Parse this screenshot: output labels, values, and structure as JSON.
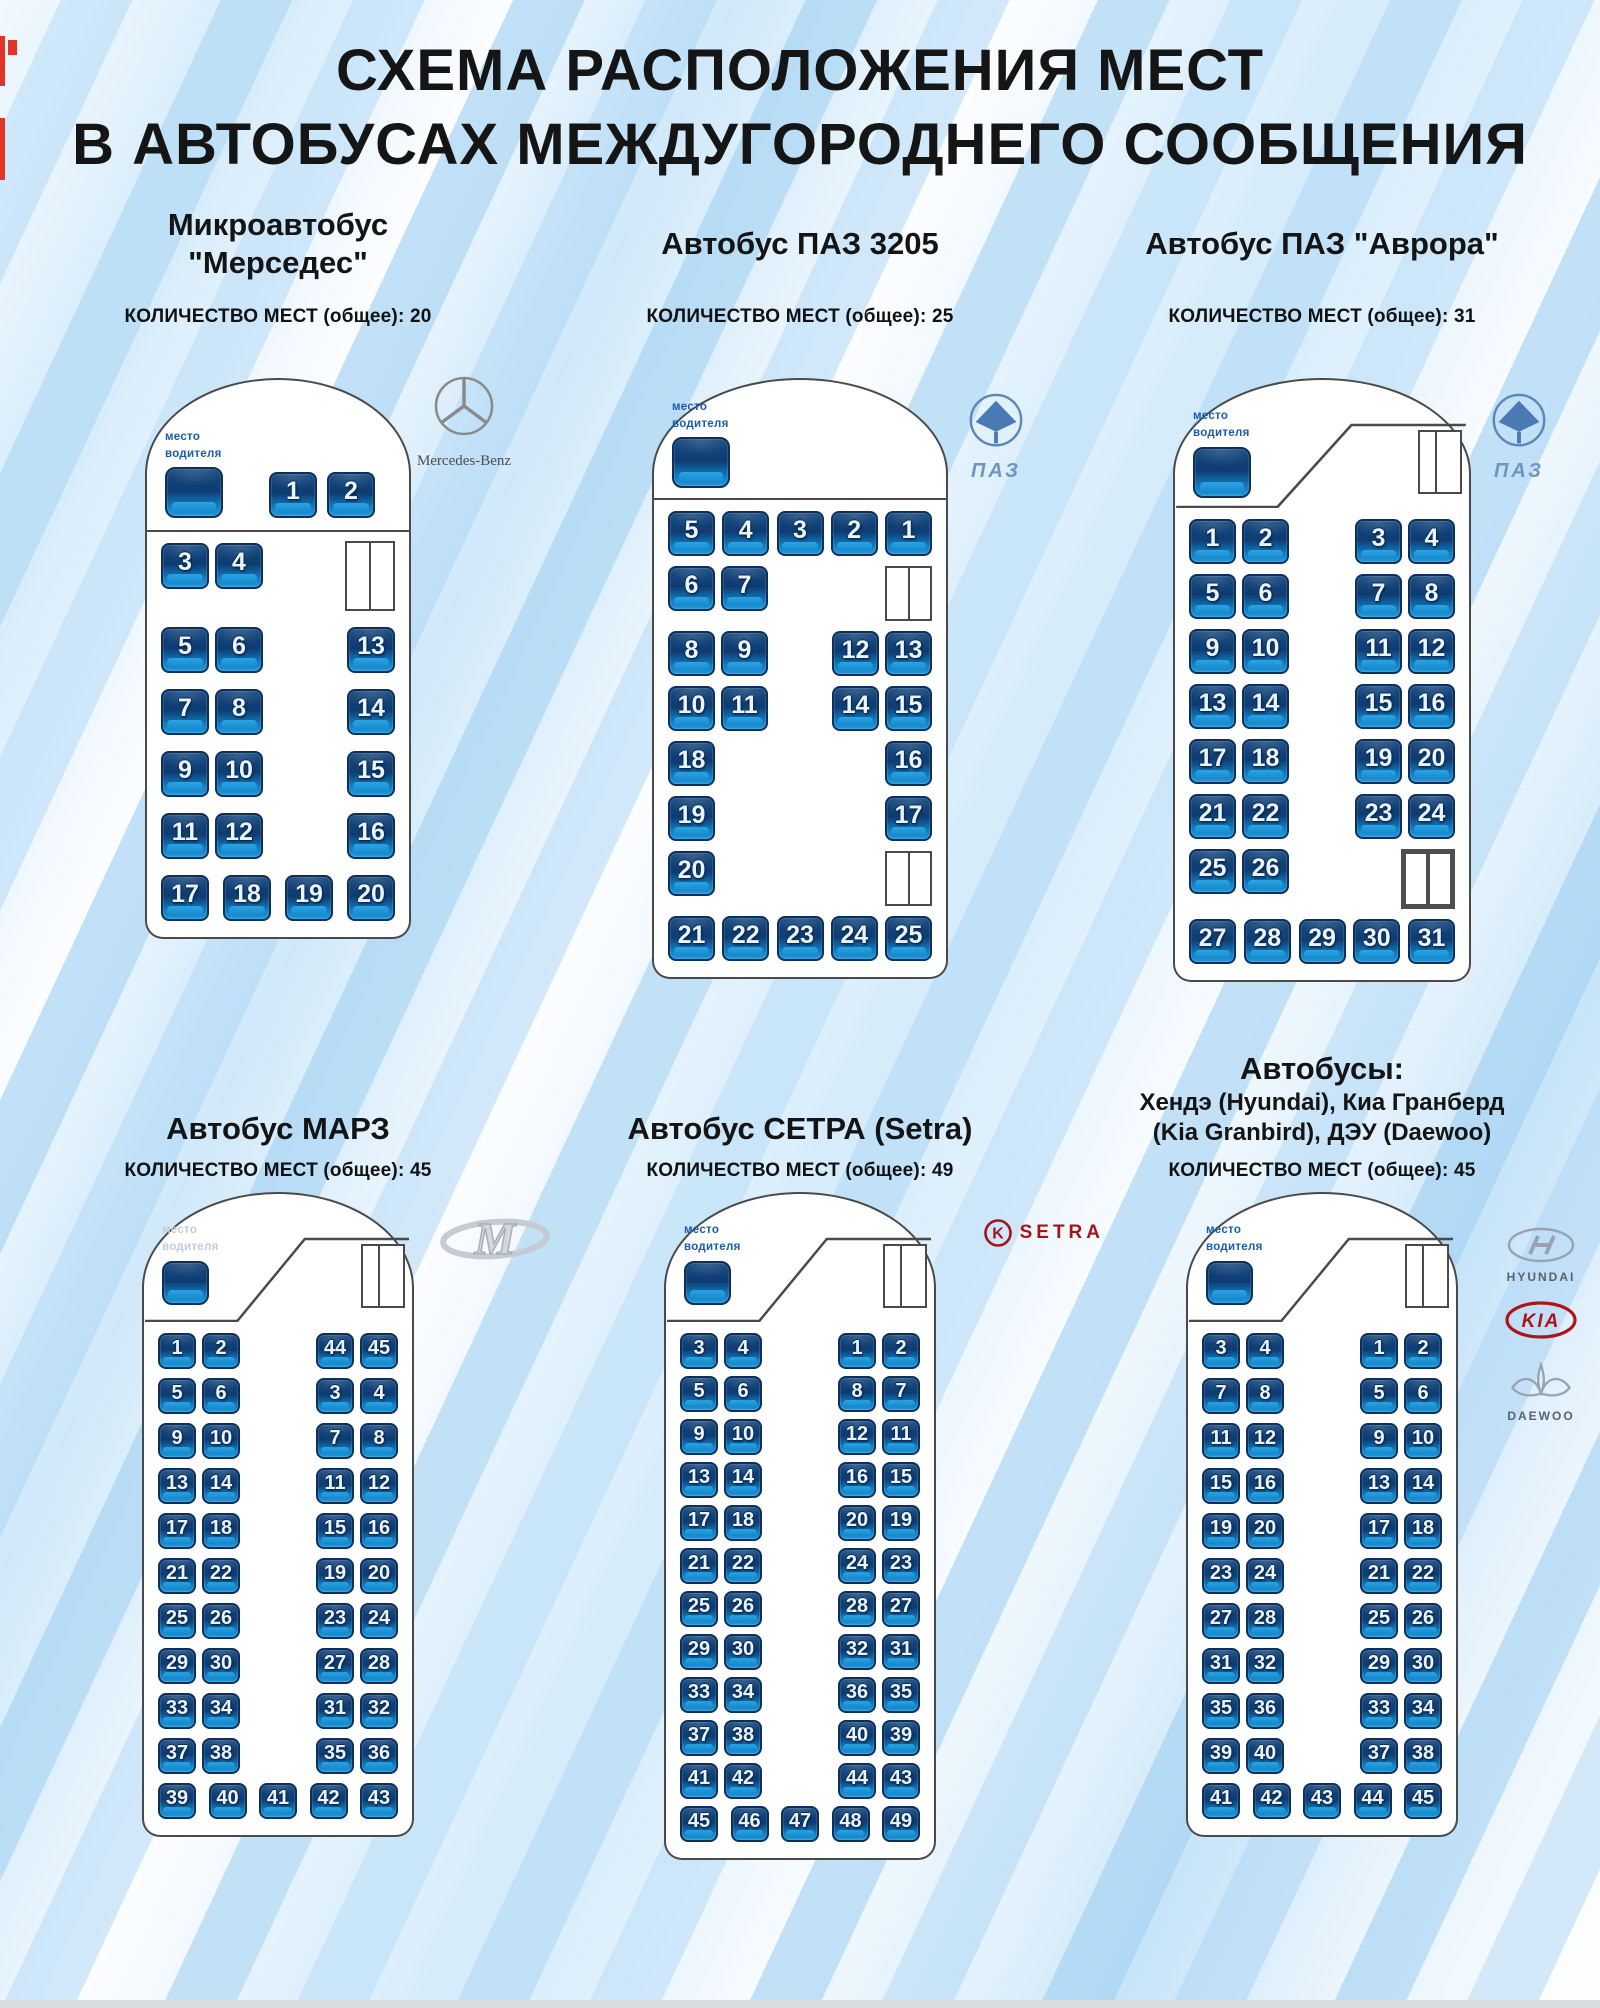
{
  "page_title": {
    "line1": "СХЕМА РАСПОЛОЖЕНИЯ МЕСТ",
    "line2": "В АВТОБУСАХ МЕЖДУГОРОДНЕГО СООБЩЕНИЯ"
  },
  "colors": {
    "seat_dark": "#0e3c72",
    "seat_light": "#1f9adc",
    "seat_border": "#0d2f5c",
    "driver_label_blue": "#1b5ca6",
    "outline_gray": "#4a4a4a",
    "setra_red": "#a6131b",
    "kia_red": "#b01219",
    "paz_blue": "#4a7ab3"
  },
  "buses": [
    {
      "key": "mercedes",
      "title_lines": [
        "Микроавтобус",
        "\"Мерседес\""
      ],
      "count_label": "КОЛИЧЕСТВО МЕСТ (общее): 20",
      "total_seats": 20,
      "driver_label": [
        "место",
        "водителя"
      ],
      "front": "mercedes",
      "front_seats": [
        1,
        2
      ],
      "logo": "mercedes",
      "rows": [
        {
          "l": [
            3,
            4
          ],
          "r": "door-tall"
        },
        {
          "l": [
            5,
            6
          ],
          "r": [
            13
          ]
        },
        {
          "l": [
            7,
            8
          ],
          "r": [
            14
          ]
        },
        {
          "l": [
            9,
            10
          ],
          "r": [
            15
          ]
        },
        {
          "l": [
            11,
            12
          ],
          "r": [
            16
          ]
        },
        {
          "full": [
            17,
            18,
            19,
            20
          ]
        }
      ]
    },
    {
      "key": "paz3205",
      "title_lines": [
        "Автобус ПАЗ 3205"
      ],
      "count_label": "КОЛИЧЕСТВО МЕСТ (общее): 25",
      "total_seats": 25,
      "driver_label": [
        "место",
        "водителя"
      ],
      "front": "divider",
      "logo": "paz",
      "rows": [
        {
          "full": [
            5,
            4,
            3,
            2,
            1
          ]
        },
        {
          "l": [
            6,
            7
          ],
          "r": "door"
        },
        {
          "l": [
            8,
            9
          ],
          "r": [
            12,
            13
          ]
        },
        {
          "l": [
            10,
            11
          ],
          "r": [
            14,
            15
          ]
        },
        {
          "l": [
            18
          ],
          "r": [
            16
          ]
        },
        {
          "l": [
            19
          ],
          "r": [
            17
          ]
        },
        {
          "l": [
            20
          ],
          "r": "door"
        },
        {
          "full": [
            21,
            22,
            23,
            24,
            25
          ]
        }
      ]
    },
    {
      "key": "aurora",
      "title_lines": [
        "Автобус ПАЗ \"Аврора\""
      ],
      "count_label": "КОЛИЧЕСТВО МЕСТ (общее): 31",
      "total_seats": 31,
      "driver_label": [
        "место",
        "водителя"
      ],
      "front": "diag",
      "logo": "paz",
      "rows": [
        {
          "l": [
            1,
            2
          ],
          "r": [
            3,
            4
          ]
        },
        {
          "l": [
            5,
            6
          ],
          "r": [
            7,
            8
          ]
        },
        {
          "l": [
            9,
            10
          ],
          "r": [
            11,
            12
          ]
        },
        {
          "l": [
            13,
            14
          ],
          "r": [
            15,
            16
          ]
        },
        {
          "l": [
            17,
            18
          ],
          "r": [
            19,
            20
          ]
        },
        {
          "l": [
            21,
            22
          ],
          "r": [
            23,
            24
          ]
        },
        {
          "l": [
            25,
            26
          ],
          "r": "door-dark"
        },
        {
          "full": [
            27,
            28,
            29,
            30,
            31
          ]
        }
      ]
    },
    {
      "key": "marz",
      "title_lines": [
        "Автобус МАРЗ"
      ],
      "count_label": "КОЛИЧЕСТВО МЕСТ (общее): 45",
      "total_seats": 45,
      "driver_label": [
        "место",
        "водителя"
      ],
      "driver_faded": true,
      "front": "diag",
      "small": true,
      "logo": "marz",
      "rows": [
        {
          "l": [
            1,
            2
          ],
          "r": [
            44,
            45
          ]
        },
        {
          "l": [
            5,
            6
          ],
          "r": [
            3,
            4
          ]
        },
        {
          "l": [
            9,
            10
          ],
          "r": [
            7,
            8
          ]
        },
        {
          "l": [
            13,
            14
          ],
          "r": [
            11,
            12
          ]
        },
        {
          "l": [
            17,
            18
          ],
          "r": [
            15,
            16
          ]
        },
        {
          "l": [
            21,
            22
          ],
          "r": [
            19,
            20
          ]
        },
        {
          "l": [
            25,
            26
          ],
          "r": [
            23,
            24
          ]
        },
        {
          "l": [
            29,
            30
          ],
          "r": [
            27,
            28
          ]
        },
        {
          "l": [
            33,
            34
          ],
          "r": [
            31,
            32
          ]
        },
        {
          "l": [
            37,
            38
          ],
          "r": [
            35,
            36
          ]
        },
        {
          "full": [
            39,
            40,
            41,
            42,
            43
          ]
        }
      ]
    },
    {
      "key": "setra",
      "title_lines": [
        "Автобус СЕТРА (Setra)"
      ],
      "count_label": "КОЛИЧЕСТВО МЕСТ (общее): 49",
      "total_seats": 49,
      "driver_label": [
        "место",
        "водителя"
      ],
      "front": "diag",
      "small": true,
      "logo": "setra",
      "rows": [
        {
          "l": [
            3,
            4
          ],
          "r": [
            1,
            2
          ]
        },
        {
          "l": [
            5,
            6
          ],
          "r": [
            8,
            7
          ]
        },
        {
          "l": [
            9,
            10
          ],
          "r": [
            12,
            11
          ]
        },
        {
          "l": [
            13,
            14
          ],
          "r": [
            16,
            15
          ]
        },
        {
          "l": [
            17,
            18
          ],
          "r": [
            20,
            19
          ]
        },
        {
          "l": [
            21,
            22
          ],
          "r": [
            24,
            23
          ]
        },
        {
          "l": [
            25,
            26
          ],
          "r": [
            28,
            27
          ]
        },
        {
          "l": [
            29,
            30
          ],
          "r": [
            32,
            31
          ]
        },
        {
          "l": [
            33,
            34
          ],
          "r": [
            36,
            35
          ]
        },
        {
          "l": [
            37,
            38
          ],
          "r": [
            40,
            39
          ]
        },
        {
          "l": [
            41,
            42
          ],
          "r": [
            44,
            43
          ]
        },
        {
          "full": [
            45,
            46,
            47,
            48,
            49
          ]
        }
      ]
    },
    {
      "key": "asia",
      "title_lines": [
        "Автобусы:",
        "Хендэ  (Hyundai), Киа Гранберд",
        "(Kia Granbird), ДЭУ (Daewoo)"
      ],
      "sub_from": 1,
      "count_label": "КОЛИЧЕСТВО МЕСТ (общее): 45",
      "total_seats": 45,
      "driver_label": [
        "место",
        "водителя"
      ],
      "front": "diag",
      "small": true,
      "logo": "asia",
      "rows": [
        {
          "l": [
            3,
            4
          ],
          "r": [
            1,
            2
          ]
        },
        {
          "l": [
            7,
            8
          ],
          "r": [
            5,
            6
          ]
        },
        {
          "l": [
            11,
            12
          ],
          "r": [
            9,
            10
          ]
        },
        {
          "l": [
            15,
            16
          ],
          "r": [
            13,
            14
          ]
        },
        {
          "l": [
            19,
            20
          ],
          "r": [
            17,
            18
          ]
        },
        {
          "l": [
            23,
            24
          ],
          "r": [
            21,
            22
          ]
        },
        {
          "l": [
            27,
            28
          ],
          "r": [
            25,
            26
          ]
        },
        {
          "l": [
            31,
            32
          ],
          "r": [
            29,
            30
          ]
        },
        {
          "l": [
            35,
            36
          ],
          "r": [
            33,
            34
          ]
        },
        {
          "l": [
            39,
            40
          ],
          "r": [
            37,
            38
          ]
        },
        {
          "full": [
            41,
            42,
            43,
            44,
            45
          ]
        }
      ]
    }
  ],
  "logos": {
    "mercedes": "Mercedes-Benz",
    "paz": "ПАЗ",
    "setra": "SETRA",
    "hyundai": "HYUNDAI",
    "kia": "KIA",
    "daewoo": "DAEWOO"
  }
}
